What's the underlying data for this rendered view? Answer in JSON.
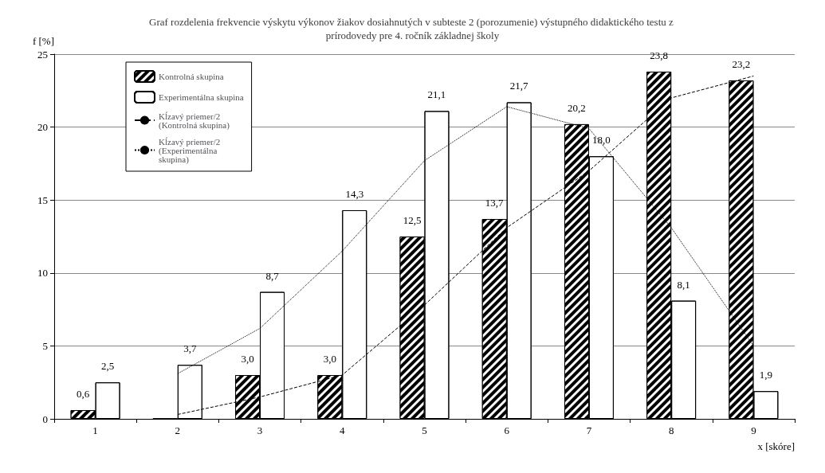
{
  "chart_data": {
    "type": "bar",
    "title": "Graf rozdelenia frekvencie výskytu výkonov žiakov dosiahnutých v subteste 2 (porozumenie) výstupného didaktického testu z prírodovedy pre 4. ročník základnej školy",
    "xlabel": "x [skóre]",
    "ylabel": "f [%]",
    "categories": [
      "1",
      "2",
      "3",
      "4",
      "5",
      "6",
      "7",
      "8",
      "9"
    ],
    "series": [
      {
        "name": "Kontrolná skupina",
        "color": "#000000",
        "values": [
          0.6,
          0,
          3.0,
          3.0,
          12.5,
          13.7,
          20.2,
          23.8,
          23.2
        ],
        "value_labels": [
          "0,6",
          null,
          "3,0",
          "3,0",
          "12,5",
          "13,7",
          "20,2",
          "23,8",
          "23,2"
        ]
      },
      {
        "name": "Experimentálna skupina",
        "color": "#ffffff",
        "values": [
          2.5,
          3.7,
          8.7,
          14.3,
          21.1,
          21.7,
          18.0,
          8.1,
          1.9
        ],
        "value_labels": [
          "2,5",
          "3,7",
          "8,7",
          "14,3",
          "21,1",
          "21,7",
          "18,0",
          "8,1",
          "1,9"
        ]
      },
      {
        "name": "Kĺzavý priemer/2 (Kontrolná skupina)",
        "type": "line",
        "color": "#000000",
        "line_style": "dashed",
        "values": [
          null,
          0.3,
          1.5,
          3.0,
          7.8,
          13.1,
          17.0,
          22.0,
          23.5
        ]
      },
      {
        "name": "Kĺzavý priemer/2 (Experimentálna skupina)",
        "type": "line",
        "color": "#000000",
        "line_style": "dotted",
        "values": [
          null,
          3.1,
          6.2,
          11.5,
          17.7,
          21.4,
          19.9,
          13.1,
          5.0
        ]
      }
    ],
    "ylim": [
      0,
      25
    ],
    "yticks": [
      0,
      5,
      10,
      15,
      20,
      25
    ],
    "grid": "y",
    "legend": "top left",
    "marker": "none"
  }
}
